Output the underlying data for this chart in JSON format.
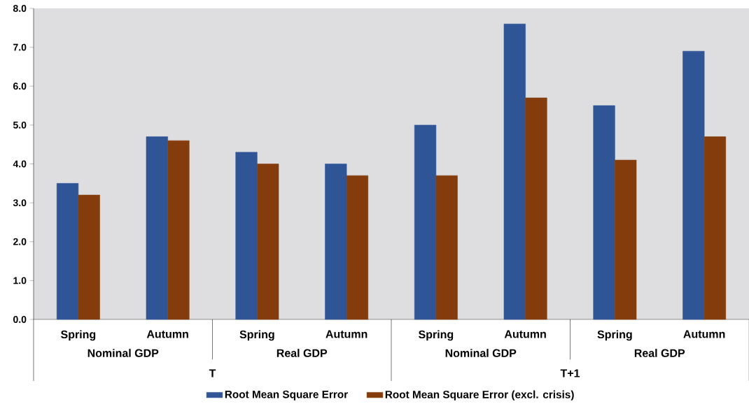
{
  "chart_data": {
    "type": "bar",
    "categories": [
      "Spring",
      "Autumn",
      "Spring",
      "Autumn",
      "Spring",
      "Autumn",
      "Spring",
      "Autumn"
    ],
    "series": [
      {
        "name": "Root Mean Square Error",
        "color": "#2f5597",
        "values": [
          3.5,
          4.7,
          4.3,
          4.0,
          5.0,
          7.6,
          5.5,
          6.9
        ]
      },
      {
        "name": "Root Mean Square Error (excl. crisis)",
        "color": "#843c0c",
        "values": [
          3.2,
          4.6,
          4.0,
          3.7,
          3.7,
          5.7,
          4.1,
          4.7
        ]
      }
    ],
    "annotations": [
      "Nominal GDP",
      "Real GDP",
      "Nominal GDP",
      "Real GDP",
      "T",
      "T+1"
    ],
    "ylim": [
      0,
      8
    ],
    "yticks": [
      {
        "value": 0,
        "label": "0.0"
      },
      {
        "value": 1,
        "label": "1.0"
      },
      {
        "value": 2,
        "label": "2.0"
      },
      {
        "value": 3,
        "label": "3.0"
      },
      {
        "value": 4,
        "label": "4.0"
      },
      {
        "value": 5,
        "label": "5.0"
      },
      {
        "value": 6,
        "label": "6.0"
      },
      {
        "value": 7,
        "label": "7.0"
      },
      {
        "value": 8,
        "label": "8.0"
      }
    ],
    "grid": false,
    "legend": "bottom"
  }
}
